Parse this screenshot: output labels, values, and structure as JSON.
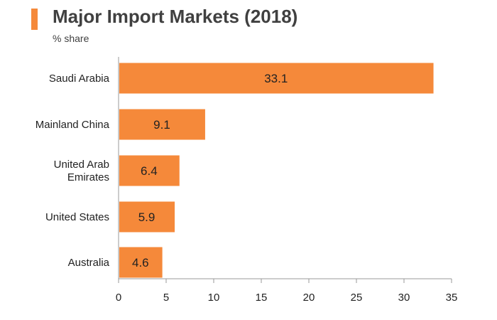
{
  "header": {
    "title": "Major Import Markets (2018)",
    "subtitle": "% share"
  },
  "colors": {
    "bar": "#f5893a",
    "accent": "#f5893a",
    "text": "#222222",
    "axis": "#999999"
  },
  "chart_data": {
    "type": "bar",
    "orientation": "horizontal",
    "title": "Major Import Markets (2018)",
    "subtitle": "% share",
    "categories": [
      [
        "Saudi Arabia"
      ],
      [
        "Mainland China"
      ],
      [
        "United Arab",
        "Emirates"
      ],
      [
        "United States"
      ],
      [
        "Australia"
      ]
    ],
    "values": [
      33.1,
      9.1,
      6.4,
      5.9,
      4.6
    ],
    "value_labels": [
      "33.1",
      "9.1",
      "6.4",
      "5.9",
      "4.6"
    ],
    "xlim": [
      0,
      35
    ],
    "xticks": [
      0,
      5,
      10,
      15,
      20,
      25,
      30,
      35
    ],
    "xlabel": "",
    "ylabel": "",
    "grid": false,
    "legend": "none"
  }
}
